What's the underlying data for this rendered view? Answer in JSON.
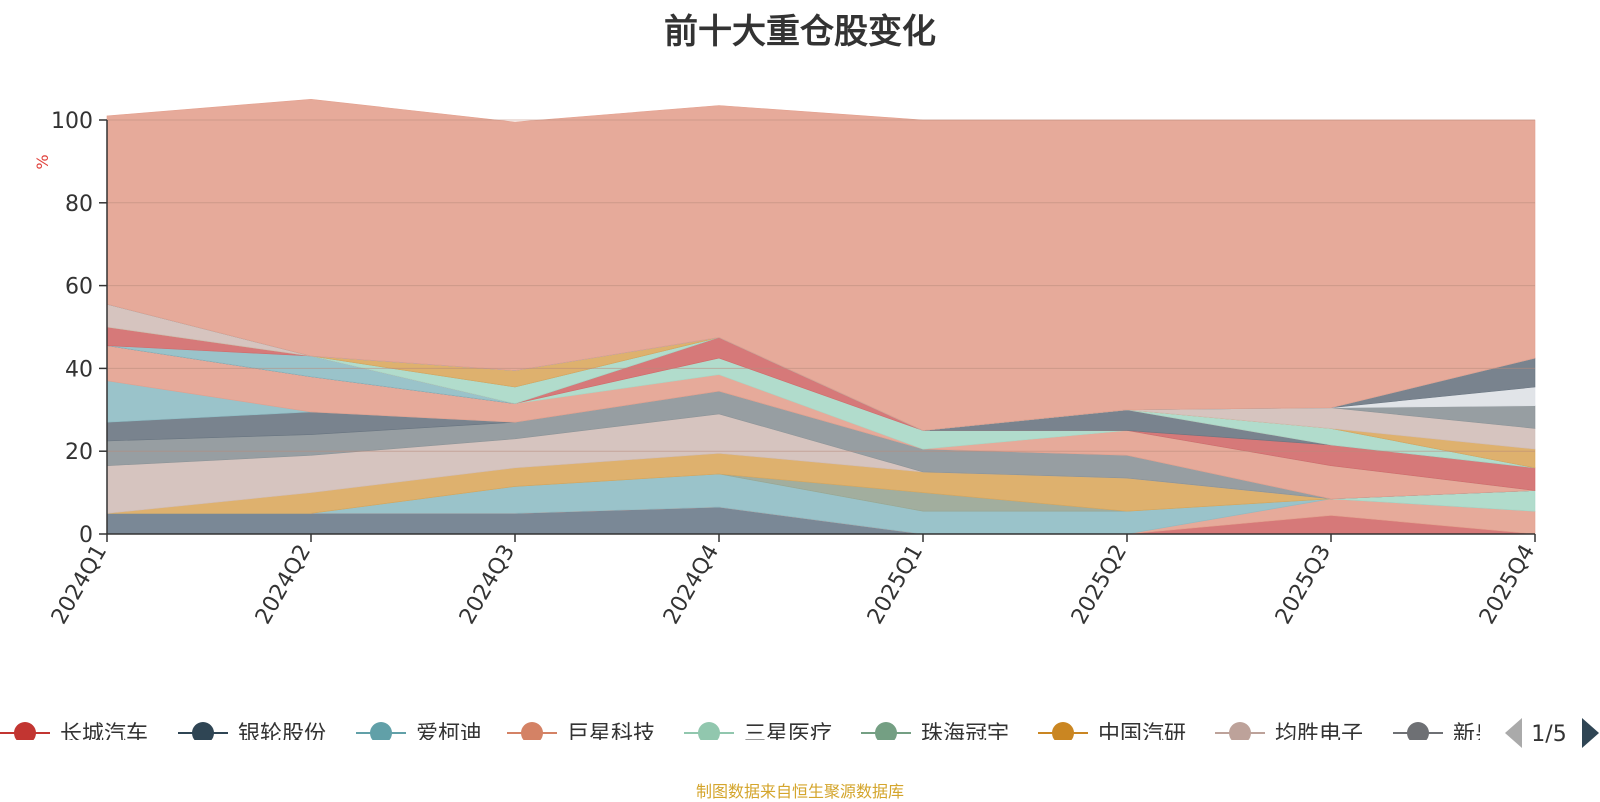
{
  "title": "前十大重仓股变化",
  "footer": "制图数据来自恒生聚源数据库",
  "chart_data": {
    "type": "area",
    "stacked": true,
    "x": [
      "2024Q1",
      "2024Q2",
      "2024Q3",
      "2024Q4",
      "2025Q1",
      "2025Q2",
      "2025Q3",
      "2025Q4"
    ],
    "ylabel": "%",
    "ylim": [
      0,
      100
    ],
    "yticks": [
      0,
      20,
      40,
      60,
      80,
      100
    ],
    "grid": true,
    "legend_position": "bottom",
    "legend_page": "1/5",
    "series": [
      {
        "name": "",
        "color": "#6b7b8b",
        "values": [
          5,
          5,
          5,
          6.5,
          0,
          0,
          0,
          0
        ]
      },
      {
        "name": "",
        "color": "#d26a6a",
        "values": [
          0,
          0,
          0,
          0,
          0,
          0,
          4.5,
          0
        ]
      },
      {
        "name": "",
        "color": "#e3a18f",
        "values": [
          0,
          0,
          0,
          0,
          0,
          0,
          4,
          5.5
        ]
      },
      {
        "name": "",
        "color": "#8fbcc4",
        "values": [
          0,
          0,
          6.5,
          8,
          5.5,
          5.5,
          0,
          0
        ]
      },
      {
        "name": "",
        "color": "#a9d8c7",
        "values": [
          0,
          0,
          0,
          0,
          0,
          0,
          0,
          5
        ]
      },
      {
        "name": "",
        "color": "#98a593",
        "values": [
          0,
          0,
          0,
          0,
          4.5,
          0,
          0,
          0
        ]
      },
      {
        "name": "",
        "color": "#daa85e",
        "values": [
          0,
          5,
          4.5,
          5,
          5,
          8,
          0,
          0
        ]
      },
      {
        "name": "",
        "color": "#d1beb8",
        "values": [
          11.5,
          9,
          7,
          9.5,
          0,
          0,
          0,
          0
        ]
      },
      {
        "name": "",
        "color": "#8c9498",
        "values": [
          6,
          5,
          4,
          5.5,
          5.5,
          5.5,
          0,
          0
        ]
      },
      {
        "name": "",
        "color": "#6a7682",
        "values": [
          4.5,
          5.5,
          0,
          0,
          0,
          0,
          0,
          0
        ]
      },
      {
        "name": "",
        "color": "#8fbcc4",
        "values": [
          10,
          0,
          0,
          0,
          0,
          0,
          0,
          0
        ]
      },
      {
        "name": "",
        "color": "#e3a18f",
        "values": [
          8.5,
          8.5,
          4.5,
          4,
          0,
          6,
          8,
          0
        ]
      },
      {
        "name": "",
        "color": "#a9d8c7",
        "values": [
          0,
          0,
          0,
          4,
          4.5,
          0,
          0,
          0
        ]
      },
      {
        "name": "",
        "color": "#d26a6a",
        "values": [
          0,
          0,
          0,
          5,
          0,
          0,
          5,
          5.5
        ]
      },
      {
        "name": "",
        "color": "#6a7682",
        "values": [
          0,
          0,
          0,
          0,
          0,
          5,
          0,
          0
        ]
      },
      {
        "name": "",
        "color": "#8fbcc4",
        "values": [
          0,
          5,
          0,
          0,
          0,
          0,
          0,
          0
        ]
      },
      {
        "name": "",
        "color": "#d26a6a",
        "values": [
          4.5,
          0,
          0,
          0,
          0,
          0,
          0,
          0
        ]
      },
      {
        "name": "",
        "color": "#a9d8c7",
        "values": [
          0,
          0,
          4,
          0,
          0,
          0,
          4,
          0
        ]
      },
      {
        "name": "",
        "color": "#98a593",
        "values": [
          0,
          0,
          0,
          0,
          0,
          0,
          0,
          0
        ]
      },
      {
        "name": "",
        "color": "#daa85e",
        "values": [
          0,
          0,
          4,
          0,
          0,
          0,
          0,
          4.5
        ]
      },
      {
        "name": "",
        "color": "#d1beb8",
        "values": [
          5.5,
          0,
          0,
          0,
          0,
          0,
          5,
          5
        ]
      },
      {
        "name": "",
        "color": "#8c9498",
        "values": [
          0,
          0,
          0,
          0,
          0,
          0,
          0,
          5.5
        ]
      },
      {
        "name": "",
        "color": "#dee1e6",
        "values": [
          0,
          0,
          0,
          0,
          0,
          0,
          0,
          4.5
        ]
      },
      {
        "name": "",
        "color": "#6a7682",
        "values": [
          0,
          0,
          0,
          0,
          0,
          0,
          0,
          7
        ]
      },
      {
        "name": "",
        "color": "#8fbcc4",
        "values": [
          0,
          0,
          0,
          0,
          0,
          0,
          0,
          0
        ]
      },
      {
        "name": "",
        "color": "#e3a18f",
        "values": [
          45.5,
          62,
          60,
          56,
          75,
          70,
          69.5,
          57.5
        ]
      }
    ]
  },
  "legend": {
    "items": [
      {
        "label": "长城汽车",
        "color": "#c23531"
      },
      {
        "label": "银轮股份",
        "color": "#2f4554"
      },
      {
        "label": "爱柯迪",
        "color": "#61a0a8"
      },
      {
        "label": "巨星科技",
        "color": "#d48265"
      },
      {
        "label": "三星医疗",
        "color": "#91c7ae"
      },
      {
        "label": "珠海冠宇",
        "color": "#749f83"
      },
      {
        "label": "中国汽研",
        "color": "#ca8622"
      },
      {
        "label": "均胜电子",
        "color": "#bda29a"
      },
      {
        "label": "新泉股份",
        "color": "#6e7074"
      }
    ],
    "page": "1/5",
    "prev_icon": "triangle-left-icon",
    "next_icon": "triangle-right-icon"
  }
}
